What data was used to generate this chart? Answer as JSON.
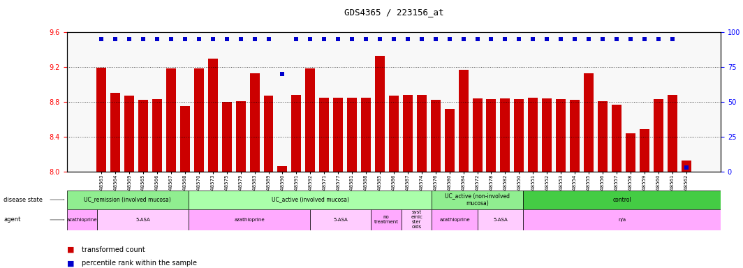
{
  "title": "GDS4365 / 223156_at",
  "samples": [
    "GSM948563",
    "GSM948564",
    "GSM948569",
    "GSM948565",
    "GSM948566",
    "GSM948567",
    "GSM948568",
    "GSM948570",
    "GSM948573",
    "GSM948575",
    "GSM948579",
    "GSM948583",
    "GSM948589",
    "GSM948590",
    "GSM948591",
    "GSM948592",
    "GSM948571",
    "GSM948577",
    "GSM948581",
    "GSM948588",
    "GSM948585",
    "GSM948586",
    "GSM948587",
    "GSM948574",
    "GSM948576",
    "GSM948580",
    "GSM948584",
    "GSM948572",
    "GSM948578",
    "GSM948582",
    "GSM948550",
    "GSM948551",
    "GSM948552",
    "GSM948553",
    "GSM948554",
    "GSM948555",
    "GSM948556",
    "GSM948557",
    "GSM948558",
    "GSM948559",
    "GSM948560",
    "GSM948561",
    "GSM948562"
  ],
  "bar_values": [
    9.19,
    8.9,
    8.87,
    8.82,
    8.83,
    9.18,
    8.75,
    9.18,
    9.3,
    8.8,
    8.81,
    9.13,
    8.87,
    8.06,
    8.88,
    9.18,
    8.85,
    8.85,
    8.85,
    8.85,
    9.33,
    8.87,
    8.88,
    8.88,
    8.82,
    8.72,
    9.17,
    8.84,
    8.83,
    8.84,
    8.83,
    8.85,
    8.84,
    8.83,
    8.82,
    9.13,
    8.81,
    8.77,
    8.44,
    8.49,
    8.83,
    8.88,
    8.13
  ],
  "percentile_values": [
    95,
    95,
    95,
    95,
    95,
    95,
    95,
    95,
    95,
    95,
    95,
    95,
    95,
    70,
    95,
    95,
    95,
    95,
    95,
    95,
    95,
    95,
    95,
    95,
    95,
    95,
    95,
    95,
    95,
    95,
    95,
    95,
    95,
    95,
    95,
    95,
    95,
    95,
    95,
    95,
    95,
    95,
    3
  ],
  "ylim": [
    8.0,
    9.6
  ],
  "yticks": [
    8.0,
    8.4,
    8.8,
    9.2,
    9.6
  ],
  "right_yticks": [
    0,
    25,
    50,
    75,
    100
  ],
  "bar_color": "#cc0000",
  "percentile_color": "#0000cc",
  "disease_state_segments": [
    {
      "label": "UC_remission (involved mucosa)",
      "start": 0,
      "end": 8,
      "color": "#90ee90"
    },
    {
      "label": "UC_active (involved mucosa)",
      "start": 8,
      "end": 24,
      "color": "#aaffaa"
    },
    {
      "label": "UC_active (non-involved\nmucosa)",
      "start": 24,
      "end": 30,
      "color": "#90ee90"
    },
    {
      "label": "control",
      "start": 30,
      "end": 43,
      "color": "#44cc44"
    }
  ],
  "agent_segments": [
    {
      "label": "azathioprine",
      "start": 0,
      "end": 2,
      "color": "#ffaaff"
    },
    {
      "label": "5-ASA",
      "start": 2,
      "end": 8,
      "color": "#ffccff"
    },
    {
      "label": "azathioprine",
      "start": 8,
      "end": 16,
      "color": "#ffaaff"
    },
    {
      "label": "5-ASA",
      "start": 16,
      "end": 20,
      "color": "#ffccff"
    },
    {
      "label": "no\ntreatment",
      "start": 20,
      "end": 22,
      "color": "#ffaaff"
    },
    {
      "label": "syst\nemic\nster\noids",
      "start": 22,
      "end": 24,
      "color": "#ffccff"
    },
    {
      "label": "azathioprine",
      "start": 24,
      "end": 27,
      "color": "#ffaaff"
    },
    {
      "label": "5-ASA",
      "start": 27,
      "end": 30,
      "color": "#ffccff"
    },
    {
      "label": "n/a",
      "start": 30,
      "end": 43,
      "color": "#ffaaff"
    }
  ],
  "bg_color": "#f0f0f0"
}
